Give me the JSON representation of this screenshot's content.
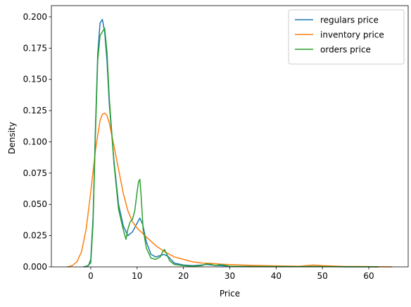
{
  "chart_data": {
    "type": "line",
    "title": "",
    "xlabel": "Price",
    "ylabel": "Density",
    "xlim": [
      -8.5,
      68.5
    ],
    "ylim": [
      0,
      0.209
    ],
    "xticks": [
      0,
      10,
      20,
      30,
      40,
      50,
      60
    ],
    "xtick_labels": [
      "0",
      "10",
      "20",
      "30",
      "40",
      "50",
      "60"
    ],
    "yticks": [
      0,
      0.025,
      0.05,
      0.075,
      0.1,
      0.125,
      0.15,
      0.175,
      0.2
    ],
    "ytick_labels": [
      "0.000",
      "0.025",
      "0.050",
      "0.075",
      "0.100",
      "0.125",
      "0.150",
      "0.175",
      "0.200"
    ],
    "grid": false,
    "legend_position": "top-right",
    "series": [
      {
        "name": "regulars price",
        "color": "#1f77b4",
        "x": [
          -1.5,
          -0.5,
          0.0,
          0.5,
          1.0,
          1.5,
          2.0,
          2.5,
          3.0,
          3.5,
          4.0,
          5.0,
          6.0,
          7.0,
          8.0,
          9.0,
          10.0,
          10.6,
          11.2,
          12.0,
          13.0,
          14.0,
          15.0,
          15.8,
          16.8,
          18.0,
          20.0,
          22.0,
          24.0,
          25.0,
          26.0,
          28.0,
          30.0,
          35.0,
          40.0,
          45.0,
          48.0,
          50.0,
          55.0,
          60.0,
          62.0
        ],
        "y": [
          0.0,
          0.001,
          0.006,
          0.04,
          0.11,
          0.17,
          0.195,
          0.198,
          0.188,
          0.165,
          0.13,
          0.085,
          0.05,
          0.033,
          0.025,
          0.028,
          0.035,
          0.039,
          0.034,
          0.02,
          0.01,
          0.008,
          0.009,
          0.01,
          0.008,
          0.003,
          0.0015,
          0.001,
          0.0015,
          0.002,
          0.0015,
          0.001,
          0.0005,
          0.0003,
          0.0002,
          0.0003,
          0.0003,
          0.0002,
          0.0001,
          0.0001,
          0.0
        ]
      },
      {
        "name": "inventory price",
        "color": "#ff7f0e",
        "x": [
          -5.0,
          -4.0,
          -3.0,
          -2.0,
          -1.0,
          0.0,
          1.0,
          2.0,
          2.5,
          3.0,
          3.5,
          4.0,
          5.0,
          6.0,
          7.0,
          8.0,
          9.0,
          10.0,
          12.0,
          14.0,
          16.0,
          18.0,
          20.0,
          22.0,
          24.0,
          26.0,
          28.0,
          30.0,
          35.0,
          40.0,
          45.0,
          48.0,
          50.0,
          55.0,
          60.0,
          65.0
        ],
        "y": [
          0.0,
          0.001,
          0.004,
          0.012,
          0.03,
          0.06,
          0.093,
          0.117,
          0.122,
          0.123,
          0.121,
          0.115,
          0.097,
          0.078,
          0.059,
          0.045,
          0.036,
          0.031,
          0.024,
          0.017,
          0.012,
          0.008,
          0.006,
          0.004,
          0.003,
          0.0028,
          0.0022,
          0.0018,
          0.0012,
          0.0008,
          0.0005,
          0.0015,
          0.001,
          0.0003,
          0.0002,
          0.0
        ]
      },
      {
        "name": "orders price",
        "color": "#2ca02c",
        "x": [
          -1.0,
          0.0,
          0.5,
          1.0,
          1.5,
          2.0,
          2.5,
          3.0,
          3.5,
          4.0,
          5.0,
          6.0,
          7.0,
          7.6,
          8.0,
          8.5,
          9.0,
          9.5,
          10.0,
          10.3,
          10.6,
          10.9,
          11.3,
          12.0,
          13.0,
          14.0,
          15.0,
          15.5,
          15.9,
          16.3,
          17.0,
          18.0,
          20.0,
          22.0,
          24.0,
          25.0,
          26.0,
          27.0,
          28.0,
          30.0,
          35.0,
          40.0,
          45.0,
          50.0,
          55.0,
          60.0,
          62.0
        ],
        "y": [
          0.0,
          0.003,
          0.035,
          0.105,
          0.165,
          0.185,
          0.188,
          0.191,
          0.172,
          0.135,
          0.083,
          0.046,
          0.03,
          0.022,
          0.03,
          0.036,
          0.038,
          0.045,
          0.06,
          0.068,
          0.07,
          0.055,
          0.03,
          0.015,
          0.007,
          0.006,
          0.008,
          0.012,
          0.014,
          0.011,
          0.005,
          0.002,
          0.001,
          0.0005,
          0.001,
          0.0025,
          0.002,
          0.001,
          0.002,
          0.0005,
          0.0003,
          0.0003,
          0.0002,
          0.0003,
          0.0001,
          0.0001,
          0.0
        ]
      }
    ]
  }
}
